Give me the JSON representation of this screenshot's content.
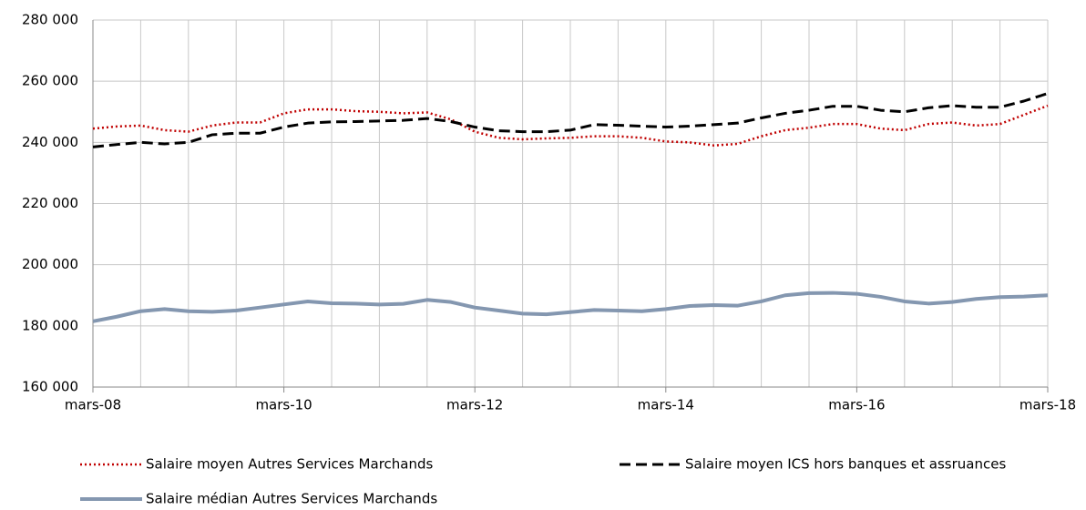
{
  "chart_data": {
    "type": "line",
    "categories": [
      "mars-08",
      null,
      null,
      null,
      null,
      null,
      null,
      null,
      "mars-10",
      null,
      null,
      null,
      null,
      null,
      null,
      null,
      "mars-12",
      null,
      null,
      null,
      null,
      null,
      null,
      null,
      "mars-14",
      null,
      null,
      null,
      null,
      null,
      null,
      null,
      "mars-16",
      null,
      null,
      null,
      null,
      null,
      null,
      null,
      "mars-18"
    ],
    "series": [
      {
        "name": "Salaire moyen Autres Services Marchands",
        "color": "#c00000",
        "style": "dotted",
        "values": [
          244500,
          245200,
          245500,
          244000,
          243500,
          245500,
          246500,
          246500,
          249500,
          250800,
          250800,
          250200,
          250000,
          249500,
          249800,
          247500,
          243500,
          241500,
          241000,
          241300,
          241500,
          242000,
          242000,
          241500,
          240300,
          240000,
          239000,
          239500,
          242000,
          244000,
          244800,
          246000,
          246000,
          244500,
          244000,
          246000,
          246500,
          245500,
          246000,
          249000,
          252000
        ]
      },
      {
        "name": "Salaire moyen ICS hors banques et assruances",
        "color": "#000000",
        "style": "dashed",
        "values": [
          238500,
          239300,
          240000,
          239500,
          240000,
          242500,
          243000,
          243000,
          245000,
          246300,
          246700,
          246800,
          247000,
          247200,
          247800,
          246800,
          245000,
          243800,
          243500,
          243500,
          244000,
          245800,
          245600,
          245300,
          245000,
          245300,
          245800,
          246300,
          248000,
          249500,
          250500,
          251800,
          251800,
          250500,
          250000,
          251300,
          252000,
          251500,
          251500,
          253500,
          256000
        ]
      },
      {
        "name": "Salaire médian Autres Services Marchands",
        "color": "#8497b0",
        "style": "solid",
        "values": [
          181500,
          183000,
          184800,
          185500,
          184800,
          184600,
          185000,
          186000,
          187000,
          188000,
          187400,
          187300,
          187000,
          187200,
          188500,
          187800,
          186000,
          185000,
          184000,
          183800,
          184500,
          185200,
          185000,
          184800,
          185500,
          186500,
          186800,
          186600,
          188000,
          190000,
          190700,
          190800,
          190500,
          189500,
          188000,
          187300,
          187800,
          188800,
          189400,
          189600,
          190000
        ]
      }
    ],
    "ylim": [
      160000,
      280000
    ],
    "yticks": [
      {
        "value": 160000,
        "label": "160 000"
      },
      {
        "value": 180000,
        "label": "180 000"
      },
      {
        "value": 200000,
        "label": "200 000"
      },
      {
        "value": 220000,
        "label": "220 000"
      },
      {
        "value": 240000,
        "label": "240 000"
      },
      {
        "value": 260000,
        "label": "260 000"
      },
      {
        "value": 280000,
        "label": "280 000"
      }
    ],
    "grid": true,
    "legend": "bottom"
  }
}
